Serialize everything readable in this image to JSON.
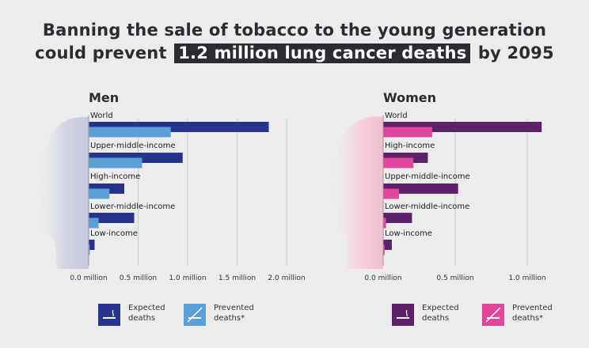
{
  "title": {
    "line1": "Banning the sale of tobacco to the young generation",
    "line2_pre": "could prevent",
    "line2_highlight": "1.2 million lung cancer deaths",
    "line2_post": "by 2095"
  },
  "colors": {
    "men_expected": "#27348b",
    "men_prevented": "#5a9fd8",
    "women_expected": "#5e1f6b",
    "women_prevented": "#e0479a",
    "men_silhouette": "#cdcfe0",
    "women_silhouette": "#f3c5d6"
  },
  "chart_data": [
    {
      "type": "bar",
      "orientation": "horizontal",
      "panel_title": "Men",
      "categories": [
        "World",
        "Upper-middle-income",
        "High-income",
        "Lower-middle-income",
        "Low-income"
      ],
      "series": [
        {
          "name": "Expected deaths",
          "values": [
            1.82,
            0.95,
            0.36,
            0.46,
            0.06
          ]
        },
        {
          "name": "Prevented deaths*",
          "values": [
            0.83,
            0.54,
            0.21,
            0.1,
            0.01
          ]
        }
      ],
      "xlim": [
        0,
        2.0
      ],
      "xticks": [
        0,
        0.5,
        1.0,
        1.5,
        2.0
      ],
      "xtick_labels": [
        "0.0 million",
        "0.5 million",
        "1.0 million",
        "1.5 million",
        "2.0 million"
      ],
      "grid": true
    },
    {
      "type": "bar",
      "orientation": "horizontal",
      "panel_title": "Women",
      "categories": [
        "World",
        "High-income",
        "Upper-middle-income",
        "Lower-middle-income",
        "Low-income"
      ],
      "series": [
        {
          "name": "Expected deaths",
          "values": [
            1.1,
            0.31,
            0.52,
            0.2,
            0.06
          ]
        },
        {
          "name": "Prevented deaths*",
          "values": [
            0.34,
            0.21,
            0.11,
            0.02,
            0.01
          ]
        }
      ],
      "xlim": [
        0,
        1.0
      ],
      "xticks": [
        0,
        0.5,
        1.0
      ],
      "xtick_labels": [
        "0.0 million",
        "0.5 million",
        "1.0 million"
      ],
      "grid": true
    }
  ],
  "legend": {
    "men": [
      {
        "label": "Expected\ndeaths",
        "color": "#27348b",
        "icon": "cigarette-icon"
      },
      {
        "label": "Prevented\ndeaths*",
        "color": "#5a9fd8",
        "icon": "no-smoking-icon"
      }
    ],
    "women": [
      {
        "label": "Expected\ndeaths",
        "color": "#5e1f6b",
        "icon": "cigarette-icon"
      },
      {
        "label": "Prevented\ndeaths*",
        "color": "#e0479a",
        "icon": "no-smoking-icon"
      }
    ]
  }
}
